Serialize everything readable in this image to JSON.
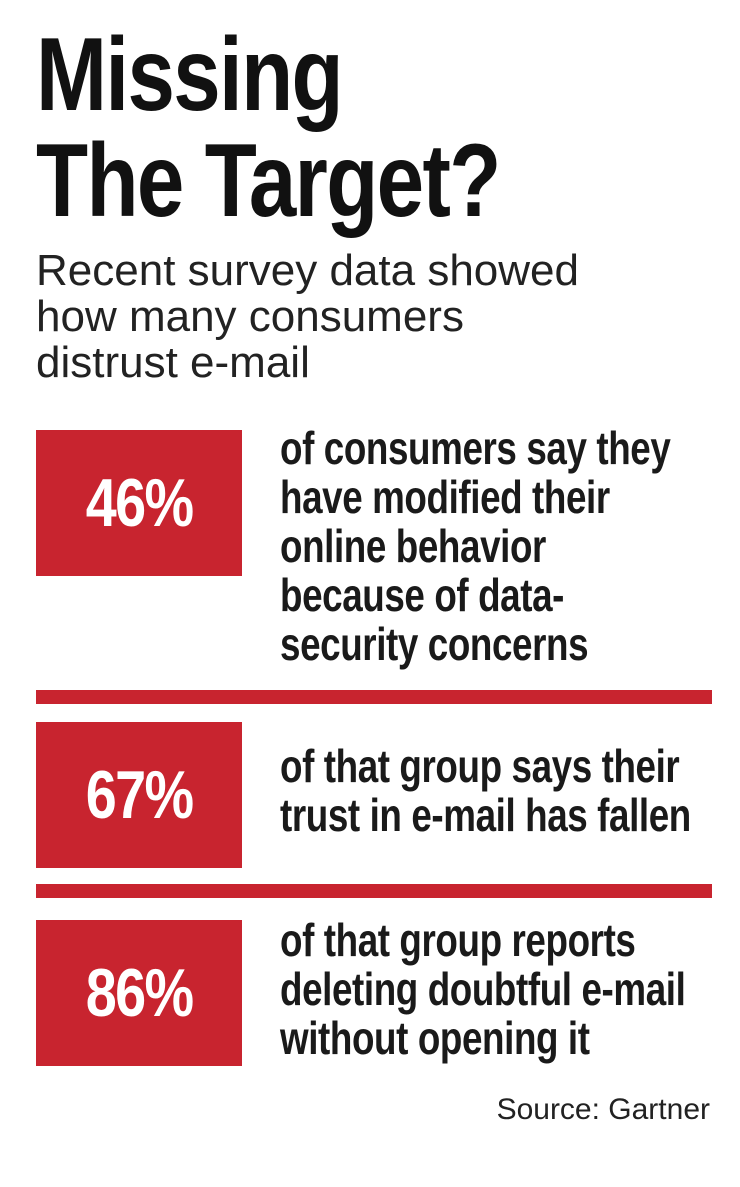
{
  "title": {
    "line1": "Missing",
    "line2": "The Target?"
  },
  "subtitle": {
    "line1": "Recent survey data showed",
    "line2": "how many consumers",
    "line3": "distrust e-mail"
  },
  "stats": [
    {
      "value": "46%",
      "lines": [
        "of consumers say they",
        "have modified their",
        "online behavior",
        "because of data-",
        "security concerns"
      ]
    },
    {
      "value": "67%",
      "lines": [
        "of that group says their",
        "trust in e-mail has fallen"
      ]
    },
    {
      "value": "86%",
      "lines": [
        "of that group reports",
        "deleting doubtful e-mail",
        "without opening it"
      ]
    }
  ],
  "source": "Source: Gartner",
  "colors": {
    "accent": "#c8242f",
    "text": "#111111",
    "background": "#ffffff"
  }
}
